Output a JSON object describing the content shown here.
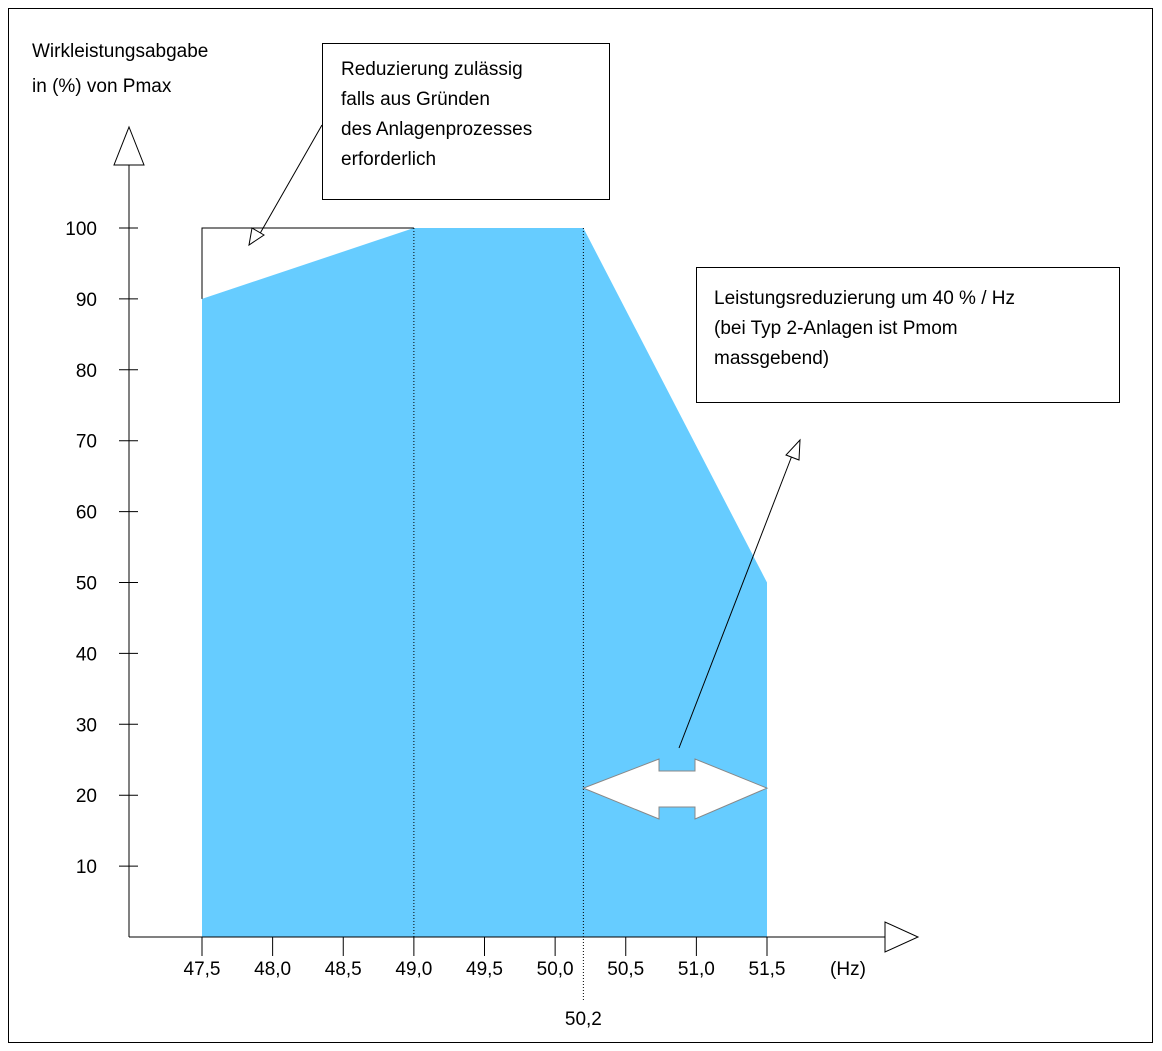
{
  "chart_data": {
    "type": "area",
    "ylabel_lines": [
      "Wirkleistungsabgabe",
      "in (%) von Pmax"
    ],
    "xlabel": "(Hz)",
    "x_ticks": [
      "47,5",
      "48,0",
      "48,5",
      "49,0",
      "49,5",
      "50,0",
      "50,5",
      "51,0",
      "51,5"
    ],
    "x_tick_values": [
      47.5,
      48.0,
      48.5,
      49.0,
      49.5,
      50.0,
      50.5,
      51.0,
      51.5
    ],
    "y_ticks": [
      "10",
      "20",
      "30",
      "40",
      "50",
      "60",
      "70",
      "80",
      "90",
      "100"
    ],
    "y_tick_values": [
      10,
      20,
      30,
      40,
      50,
      60,
      70,
      80,
      90,
      100
    ],
    "xlim": [
      47.5,
      51.5
    ],
    "ylim": [
      0,
      100
    ],
    "marker_label": "50,2",
    "marker_value": 50.2,
    "divider_value": 49.0,
    "series": [
      {
        "x": [
          47.5,
          49.0,
          50.2,
          51.5
        ],
        "y": [
          90,
          100,
          100,
          50
        ]
      }
    ],
    "allowed_reduction_region": {
      "x": [
        47.5,
        49.0
      ],
      "y": [
        90,
        100
      ]
    },
    "fill_color": "#66ccff",
    "annotations": [
      {
        "id": "note1",
        "lines": [
          "Reduzierung zulässig",
          "falls aus Gründen",
          "des Anlagenprozesses",
          "erforderlich"
        ]
      },
      {
        "id": "note2",
        "lines": [
          "Leistungsreduzierung um 40 % / Hz",
          "(bei Typ 2-Anlagen ist Pmom",
          "massgebend)"
        ]
      }
    ]
  }
}
